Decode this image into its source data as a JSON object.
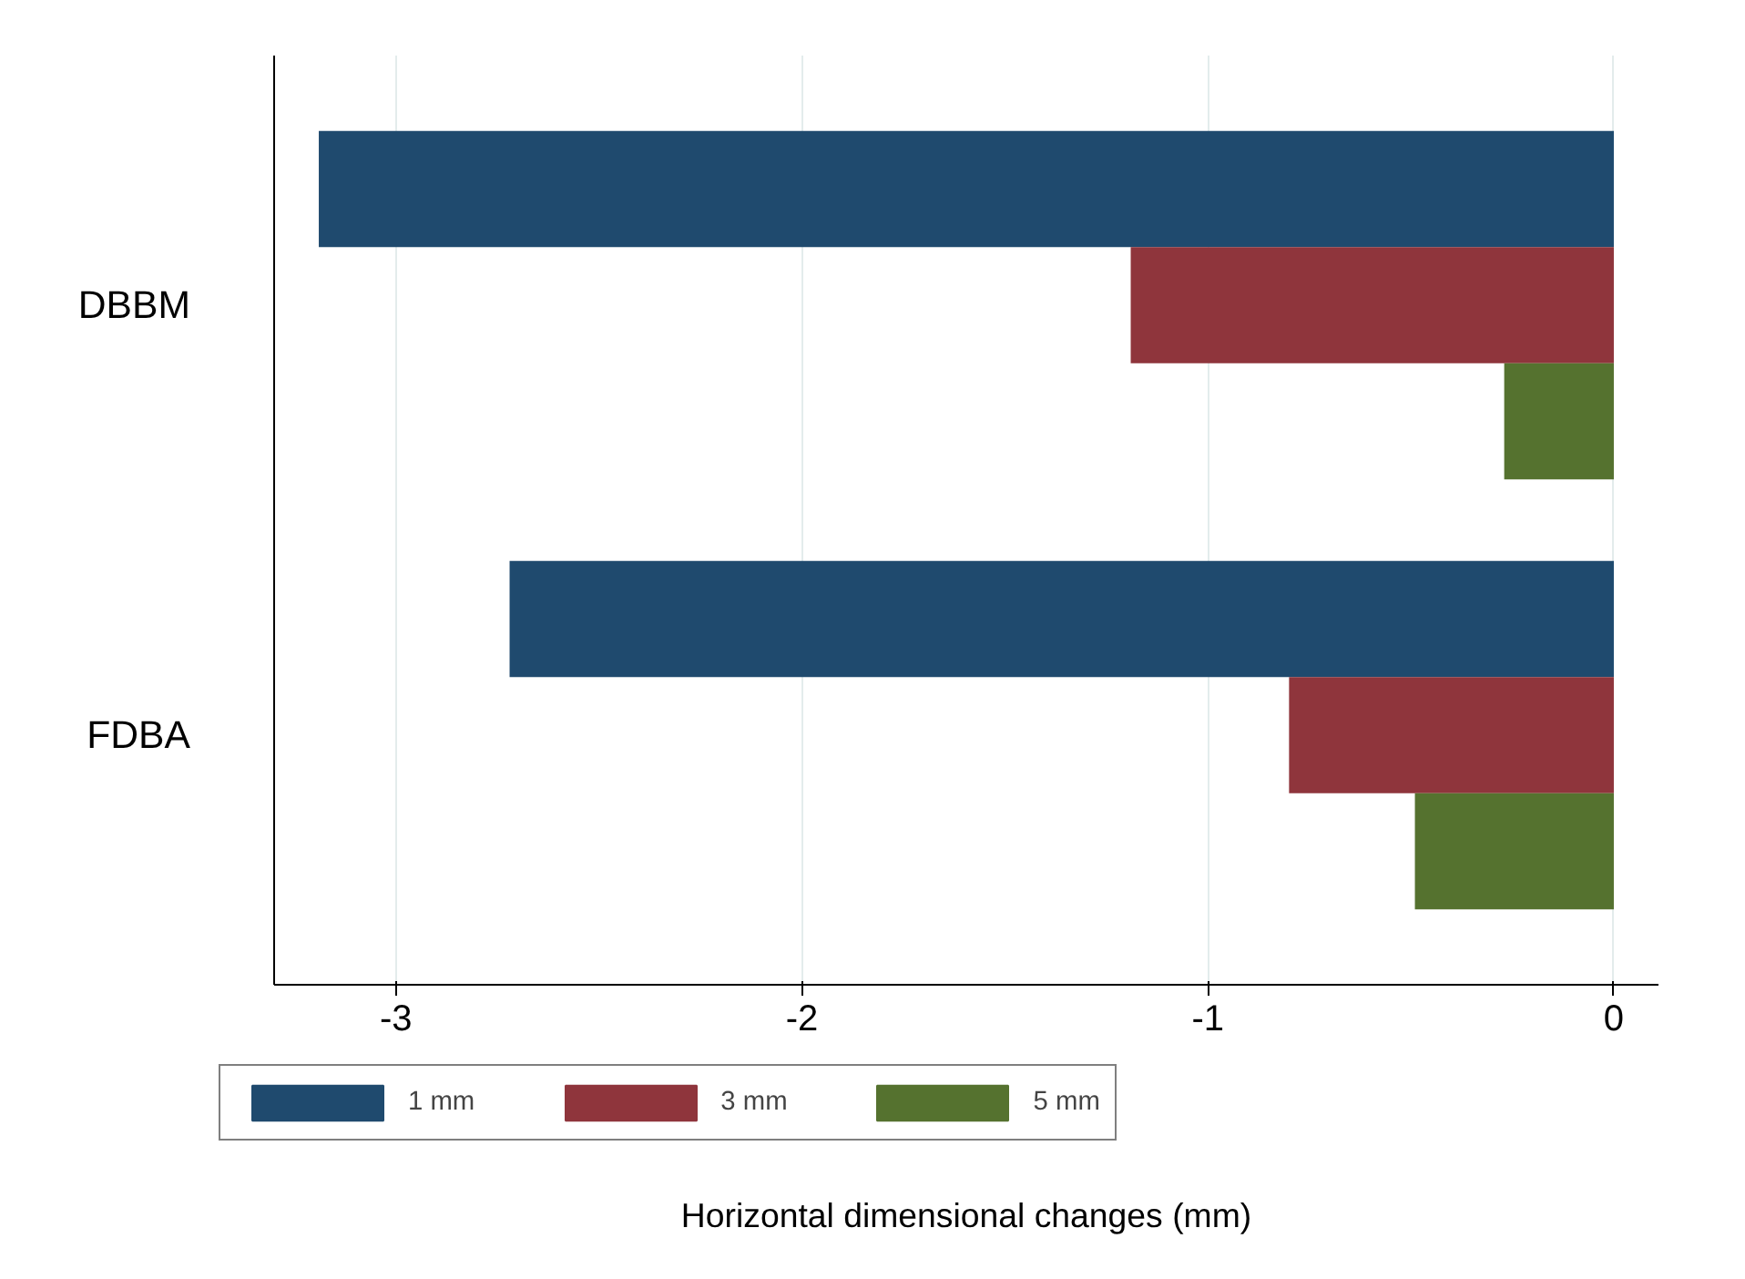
{
  "chart_data": {
    "type": "bar",
    "orientation": "horizontal",
    "categories": [
      "DBBM",
      "FDBA"
    ],
    "series": [
      {
        "name": "1 mm",
        "color": "#1f4a6e",
        "values": [
          -3.19,
          -2.72
        ]
      },
      {
        "name": "3 mm",
        "color": "#8f353c",
        "values": [
          -1.19,
          -0.8
        ]
      },
      {
        "name": "5 mm",
        "color": "#55722f",
        "values": [
          -0.27,
          -0.49
        ]
      }
    ],
    "xlabel": "Horizontal dimensional changes (mm)",
    "xlim": [
      -3.3,
      0.11
    ],
    "xticks": [
      -3,
      -2,
      -1,
      0
    ],
    "grid": "x",
    "legend": "bottom"
  }
}
